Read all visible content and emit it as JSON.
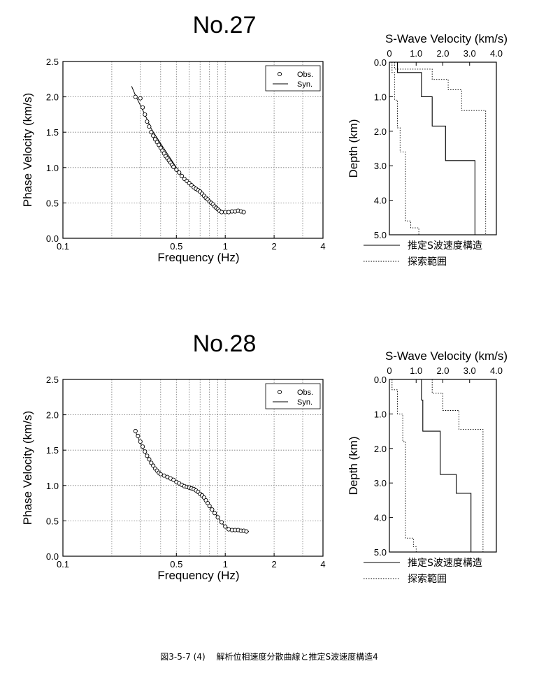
{
  "caption": "図3-5-7 (4)　 解析位相速度分散曲線と推定S波速度構造4",
  "chart_data": [
    {
      "type": "scatter",
      "panel_title": "No.27",
      "xlabel": "Frequency (Hz)",
      "ylabel": "Phase Velocity (km/s)",
      "xscale": "log",
      "xlim": [
        0.1,
        4
      ],
      "ylim": [
        0,
        2.5
      ],
      "xticks": [
        0.1,
        0.5,
        1,
        2,
        4
      ],
      "xtick_labels": [
        "0.1",
        "0.5",
        "1",
        "2",
        "4"
      ],
      "yticks": [
        0,
        0.5,
        1.0,
        1.5,
        2.0,
        2.5
      ],
      "ytick_labels": [
        "0.0",
        "0.5",
        "1.0",
        "1.5",
        "2.0",
        "2.5"
      ],
      "grid": true,
      "legend": "top-right",
      "series": [
        {
          "name": "Obs.",
          "marker": "circle",
          "x": [
            0.28,
            0.3,
            0.31,
            0.32,
            0.33,
            0.34,
            0.35,
            0.36,
            0.37,
            0.38,
            0.39,
            0.4,
            0.41,
            0.42,
            0.43,
            0.44,
            0.45,
            0.46,
            0.47,
            0.48,
            0.5,
            0.52,
            0.54,
            0.56,
            0.58,
            0.6,
            0.62,
            0.64,
            0.66,
            0.68,
            0.7,
            0.72,
            0.74,
            0.76,
            0.78,
            0.8,
            0.82,
            0.84,
            0.86,
            0.88,
            0.9,
            0.92,
            0.95,
            1.0,
            1.05,
            1.1,
            1.15,
            1.2,
            1.25,
            1.3
          ],
          "y": [
            2.0,
            1.98,
            1.85,
            1.75,
            1.65,
            1.58,
            1.5,
            1.45,
            1.4,
            1.36,
            1.32,
            1.28,
            1.24,
            1.2,
            1.16,
            1.13,
            1.1,
            1.07,
            1.04,
            1.01,
            0.97,
            0.93,
            0.88,
            0.84,
            0.81,
            0.78,
            0.75,
            0.72,
            0.7,
            0.68,
            0.66,
            0.63,
            0.6,
            0.57,
            0.55,
            0.52,
            0.5,
            0.48,
            0.45,
            0.43,
            0.41,
            0.39,
            0.37,
            0.37,
            0.37,
            0.38,
            0.38,
            0.39,
            0.38,
            0.37
          ]
        },
        {
          "name": "Syn.",
          "marker": "line",
          "x": [
            0.265,
            0.28,
            0.3,
            0.32,
            0.35,
            0.38,
            0.4,
            0.45,
            0.5,
            0.55,
            0.6,
            0.65,
            0.7,
            0.75,
            0.8,
            0.85,
            0.9,
            0.95,
            1.0,
            1.1,
            1.2,
            1.3
          ],
          "y": [
            2.15,
            2.02,
            1.88,
            1.75,
            1.55,
            1.42,
            1.34,
            1.16,
            1.0,
            0.87,
            0.77,
            0.7,
            0.64,
            0.58,
            0.52,
            0.47,
            0.42,
            0.39,
            0.38,
            0.37,
            0.38,
            0.37
          ]
        }
      ]
    },
    {
      "type": "line",
      "panel_title": "S-Wave Velocity (km/s)",
      "ylabel": "Depth (km)",
      "xlim": [
        0,
        4.0
      ],
      "ylim": [
        0,
        5.0
      ],
      "xticks": [
        0,
        1.0,
        2.0,
        3.0,
        4.0
      ],
      "xtick_labels": [
        "0",
        "1.0",
        "2.0",
        "3.0",
        "4.0"
      ],
      "yticks": [
        0,
        1.0,
        2.0,
        3.0,
        4.0,
        5.0
      ],
      "ytick_labels": [
        "0.0",
        "1.0",
        "2.0",
        "3.0",
        "4.0",
        "5.0"
      ],
      "legend": "bottom",
      "series": [
        {
          "name": "推定S波速度構造",
          "style": "solid",
          "x": [
            0.3,
            0.3,
            1.2,
            1.2,
            1.6,
            1.6,
            2.1,
            2.1,
            3.2,
            3.2
          ],
          "y": [
            0,
            0.3,
            0.3,
            1.0,
            1.0,
            1.85,
            1.85,
            2.85,
            2.85,
            5.0
          ]
        },
        {
          "name": "探索範囲",
          "style": "dotted",
          "x": [
            0.1,
            0.1,
            0.2,
            0.2,
            0.3,
            0.3,
            0.4,
            0.4,
            0.6,
            0.6,
            0.8,
            0.8,
            1.1,
            1.1
          ],
          "y": [
            0,
            0.3,
            0.3,
            1.1,
            1.1,
            1.9,
            1.9,
            2.6,
            2.6,
            4.6,
            4.6,
            4.8,
            4.8,
            5.0
          ]
        },
        {
          "name": "",
          "style": "dotted",
          "x": [
            0.2,
            0.2,
            1.6,
            1.6,
            2.2,
            2.2,
            2.7,
            2.7,
            3.6,
            3.6
          ],
          "y": [
            0,
            0.2,
            0.2,
            0.5,
            0.5,
            0.8,
            0.8,
            1.4,
            1.4,
            5.0
          ]
        }
      ]
    },
    {
      "type": "scatter",
      "panel_title": "No.28",
      "xlabel": "Frequency (Hz)",
      "ylabel": "Phase Velocity (km/s)",
      "xscale": "log",
      "xlim": [
        0.1,
        4
      ],
      "ylim": [
        0,
        2.5
      ],
      "xticks": [
        0.1,
        0.5,
        1,
        2,
        4
      ],
      "xtick_labels": [
        "0.1",
        "0.5",
        "1",
        "2",
        "4"
      ],
      "yticks": [
        0,
        0.5,
        1.0,
        1.5,
        2.0,
        2.5
      ],
      "ytick_labels": [
        "0.0",
        "0.5",
        "1.0",
        "1.5",
        "2.0",
        "2.5"
      ],
      "grid": true,
      "legend": "top-right",
      "series": [
        {
          "name": "Obs.",
          "marker": "circle",
          "x": [
            0.28,
            0.29,
            0.3,
            0.31,
            0.32,
            0.33,
            0.34,
            0.35,
            0.36,
            0.37,
            0.38,
            0.39,
            0.4,
            0.42,
            0.44,
            0.46,
            0.48,
            0.5,
            0.52,
            0.54,
            0.56,
            0.58,
            0.6,
            0.62,
            0.64,
            0.66,
            0.68,
            0.7,
            0.72,
            0.74,
            0.76,
            0.78,
            0.8,
            0.83,
            0.86,
            0.9,
            0.95,
            1.0,
            1.05,
            1.1,
            1.15,
            1.2,
            1.25,
            1.3,
            1.35
          ],
          "y": [
            1.77,
            1.7,
            1.62,
            1.55,
            1.48,
            1.42,
            1.37,
            1.32,
            1.28,
            1.24,
            1.21,
            1.18,
            1.16,
            1.14,
            1.12,
            1.1,
            1.08,
            1.05,
            1.03,
            1.01,
            0.99,
            0.98,
            0.97,
            0.96,
            0.95,
            0.93,
            0.91,
            0.88,
            0.86,
            0.83,
            0.79,
            0.75,
            0.71,
            0.66,
            0.61,
            0.55,
            0.48,
            0.42,
            0.38,
            0.37,
            0.37,
            0.37,
            0.36,
            0.36,
            0.35
          ]
        },
        {
          "name": "Syn.",
          "marker": "line",
          "x": [
            0.28,
            0.3,
            0.32,
            0.35,
            0.38,
            0.4,
            0.45,
            0.5,
            0.55,
            0.6,
            0.65,
            0.7,
            0.75,
            0.8,
            0.85,
            0.9,
            0.95,
            1.0,
            1.1,
            1.2,
            1.3,
            1.4
          ],
          "y": [
            1.76,
            1.6,
            1.46,
            1.31,
            1.21,
            1.16,
            1.1,
            1.05,
            1.0,
            0.97,
            0.93,
            0.88,
            0.81,
            0.72,
            0.63,
            0.55,
            0.47,
            0.42,
            0.38,
            0.37,
            0.36,
            0.35
          ]
        }
      ]
    },
    {
      "type": "line",
      "panel_title": "S-Wave Velocity (km/s)",
      "ylabel": "Depth (km)",
      "xlim": [
        0,
        4.0
      ],
      "ylim": [
        0,
        5.0
      ],
      "xticks": [
        0,
        1.0,
        2.0,
        3.0,
        4.0
      ],
      "xtick_labels": [
        "0",
        "1.0",
        "2.0",
        "3.0",
        "4.0"
      ],
      "yticks": [
        0,
        1.0,
        2.0,
        3.0,
        4.0,
        5.0
      ],
      "ytick_labels": [
        "0.0",
        "1.0",
        "2.0",
        "3.0",
        "4.0",
        "5.0"
      ],
      "legend": "bottom",
      "series": [
        {
          "name": "推定S波速度構造",
          "style": "solid",
          "x": [
            1.2,
            1.2,
            1.25,
            1.25,
            1.9,
            1.9,
            2.5,
            2.5,
            3.05,
            3.05
          ],
          "y": [
            0,
            0.6,
            0.6,
            1.5,
            1.5,
            2.75,
            2.75,
            3.3,
            3.3,
            5.0
          ]
        },
        {
          "name": "探索範囲",
          "style": "dotted",
          "x": [
            0.1,
            0.1,
            0.3,
            0.3,
            0.5,
            0.5,
            0.6,
            0.6,
            0.9,
            0.9,
            1.0,
            1.0
          ],
          "y": [
            0,
            0.3,
            0.3,
            1.0,
            1.0,
            1.8,
            1.8,
            4.6,
            4.6,
            4.85,
            4.85,
            5.0
          ]
        },
        {
          "name": "",
          "style": "dotted",
          "x": [
            1.6,
            1.6,
            2.0,
            2.0,
            2.6,
            2.6,
            3.5,
            3.5
          ],
          "y": [
            0,
            0.4,
            0.4,
            0.9,
            0.9,
            1.45,
            1.45,
            5.0
          ]
        }
      ]
    }
  ]
}
